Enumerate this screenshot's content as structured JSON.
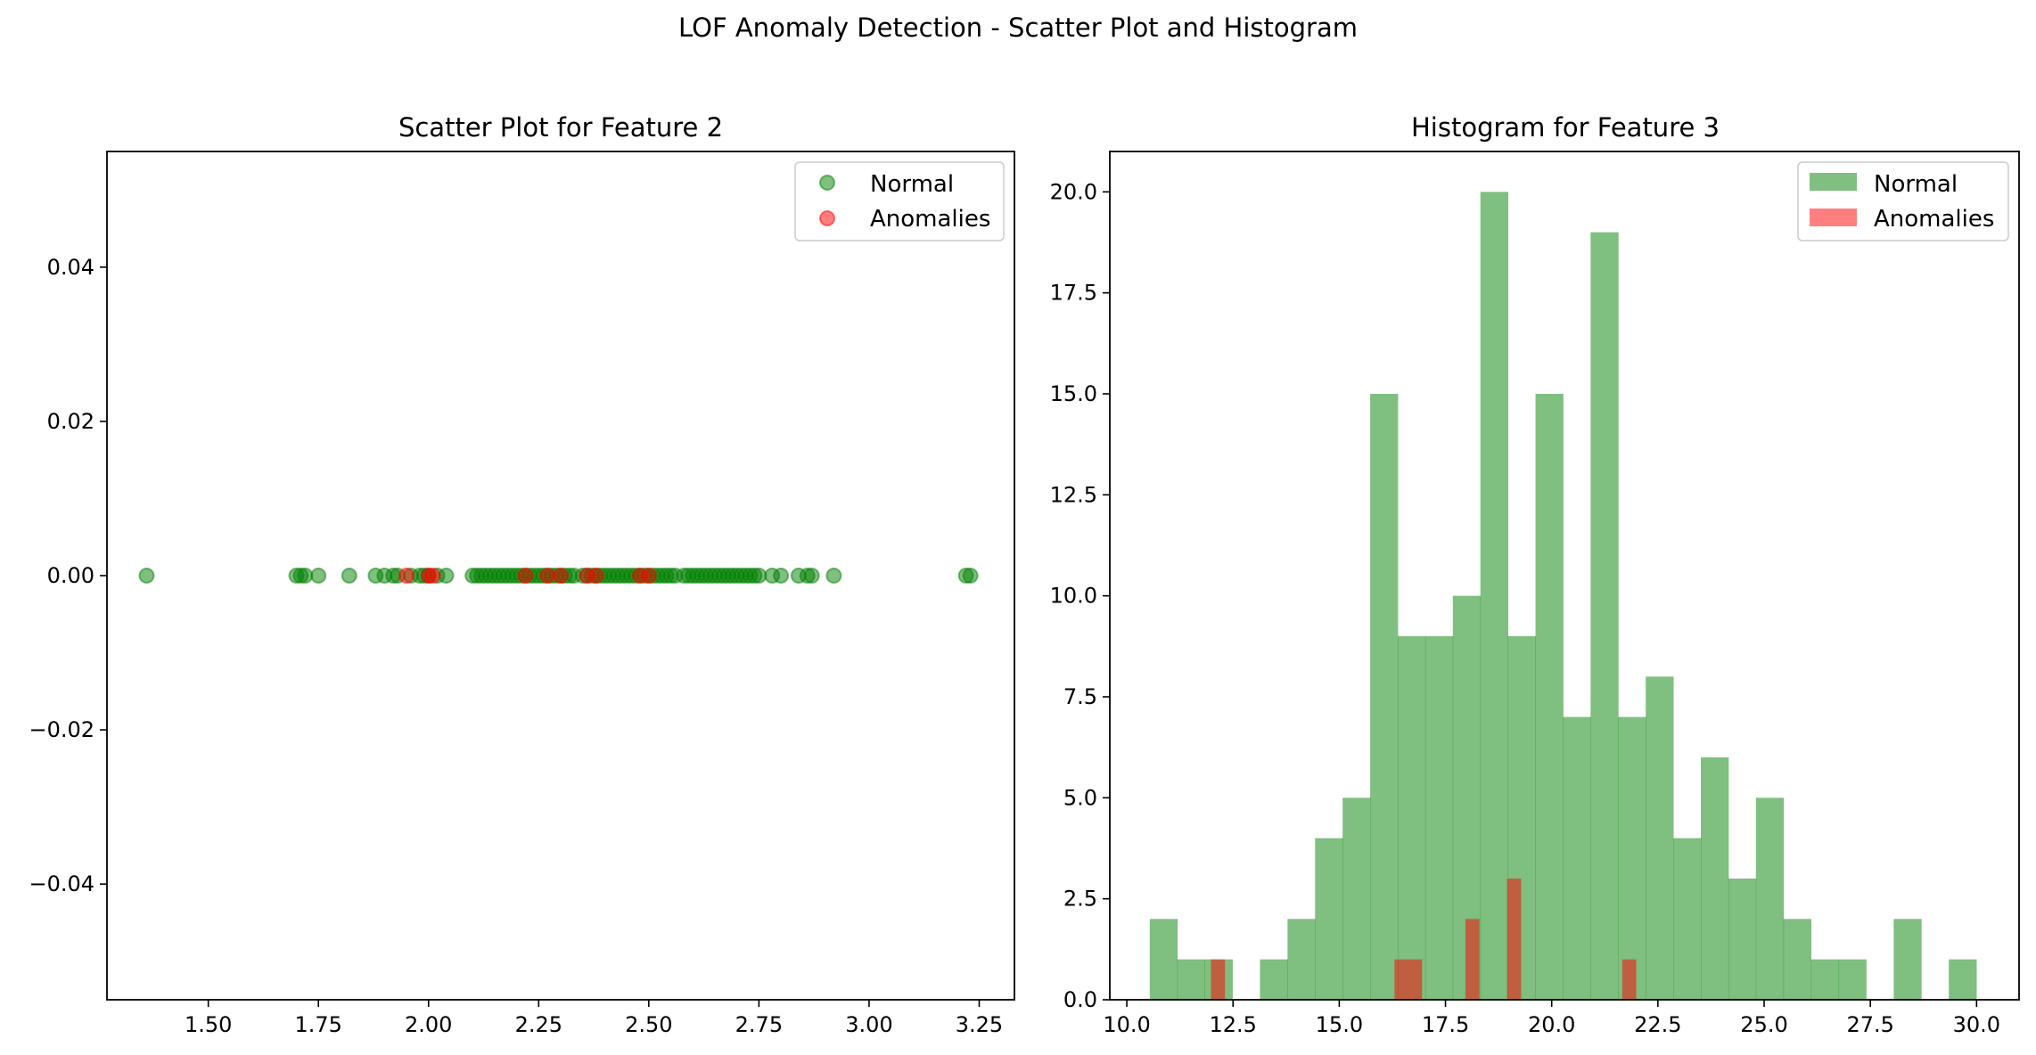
{
  "figure": {
    "suptitle": "LOF Anomaly Detection - Scatter Plot and Histogram"
  },
  "colors": {
    "normal": "#008000",
    "anomaly": "#ff0000",
    "overlap": "#c0603d"
  },
  "chart_data": [
    {
      "type": "scatter",
      "title": "Scatter Plot for Feature 2",
      "xlabel": "",
      "ylabel": "",
      "xlim": [
        1.27,
        3.33
      ],
      "ylim": [
        -0.055,
        0.055
      ],
      "xticks": [
        1.5,
        1.75,
        2.0,
        2.25,
        2.5,
        2.75,
        3.0,
        3.25
      ],
      "xtick_labels": [
        "1.50",
        "1.75",
        "2.00",
        "2.25",
        "2.50",
        "2.75",
        "3.00",
        "3.25"
      ],
      "yticks": [
        0.04,
        0.02,
        0.0,
        -0.02,
        -0.04
      ],
      "ytick_labels": [
        "0.04",
        "0.02",
        "0.00",
        "−0.02",
        "−0.04"
      ],
      "grid": false,
      "legend_position": "top-right",
      "series": [
        {
          "name": "Normal",
          "color": "green",
          "x": [
            1.36,
            1.7,
            1.71,
            1.72,
            1.75,
            1.82,
            1.88,
            1.9,
            1.92,
            1.93,
            1.96,
            1.98,
            1.99,
            2.0,
            2.02,
            2.04,
            2.1,
            2.11,
            2.12,
            2.13,
            2.14,
            2.15,
            2.16,
            2.17,
            2.18,
            2.19,
            2.2,
            2.21,
            2.22,
            2.23,
            2.24,
            2.25,
            2.26,
            2.27,
            2.28,
            2.29,
            2.3,
            2.31,
            2.32,
            2.33,
            2.35,
            2.36,
            2.37,
            2.38,
            2.39,
            2.4,
            2.41,
            2.42,
            2.43,
            2.44,
            2.45,
            2.46,
            2.47,
            2.48,
            2.49,
            2.5,
            2.51,
            2.52,
            2.53,
            2.54,
            2.55,
            2.56,
            2.58,
            2.59,
            2.6,
            2.61,
            2.62,
            2.63,
            2.64,
            2.65,
            2.66,
            2.67,
            2.68,
            2.69,
            2.7,
            2.71,
            2.72,
            2.73,
            2.74,
            2.75,
            2.78,
            2.8,
            2.84,
            2.86,
            2.87,
            2.92,
            3.22,
            3.23
          ],
          "y": [
            0,
            0,
            0,
            0,
            0,
            0,
            0,
            0,
            0,
            0,
            0,
            0,
            0,
            0,
            0,
            0,
            0,
            0,
            0,
            0,
            0,
            0,
            0,
            0,
            0,
            0,
            0,
            0,
            0,
            0,
            0,
            0,
            0,
            0,
            0,
            0,
            0,
            0,
            0,
            0,
            0,
            0,
            0,
            0,
            0,
            0,
            0,
            0,
            0,
            0,
            0,
            0,
            0,
            0,
            0,
            0,
            0,
            0,
            0,
            0,
            0,
            0,
            0,
            0,
            0,
            0,
            0,
            0,
            0,
            0,
            0,
            0,
            0,
            0,
            0,
            0,
            0,
            0,
            0,
            0,
            0,
            0,
            0,
            0,
            0,
            0,
            0,
            0
          ]
        },
        {
          "name": "Anomalies",
          "color": "red",
          "x": [
            1.95,
            2.0,
            2.01,
            2.22,
            2.27,
            2.3,
            2.36,
            2.38,
            2.48,
            2.5
          ],
          "y": [
            0,
            0,
            0,
            0,
            0,
            0,
            0,
            0,
            0,
            0
          ]
        }
      ]
    },
    {
      "type": "bar",
      "subtype": "histogram",
      "title": "Histogram for Feature 3",
      "xlabel": "",
      "ylabel": "",
      "xlim": [
        9.6,
        31.0
      ],
      "ylim": [
        0,
        21
      ],
      "xticks": [
        10.0,
        12.5,
        15.0,
        17.5,
        20.0,
        22.5,
        25.0,
        27.5,
        30.0
      ],
      "xtick_labels": [
        "10.0",
        "12.5",
        "15.0",
        "17.5",
        "20.0",
        "22.5",
        "25.0",
        "27.5",
        "30.0"
      ],
      "yticks": [
        0.0,
        2.5,
        5.0,
        7.5,
        10.0,
        12.5,
        15.0,
        17.5,
        20.0
      ],
      "ytick_labels": [
        "0.0",
        "2.5",
        "5.0",
        "7.5",
        "10.0",
        "12.5",
        "15.0",
        "17.5",
        "20.0"
      ],
      "grid": false,
      "legend_position": "top-right",
      "series": [
        {
          "name": "Normal",
          "color": "green",
          "bin_start": 10.54,
          "bin_width": 0.6485,
          "counts": [
            2,
            1,
            1,
            0,
            1,
            2,
            4,
            5,
            15,
            9,
            9,
            10,
            20,
            9,
            15,
            7,
            19,
            7,
            8,
            4,
            6,
            3,
            5,
            2,
            1,
            1,
            0,
            2,
            0,
            1
          ]
        },
        {
          "name": "Anomalies",
          "color": "red",
          "bins": [
            {
              "start": 11.98,
              "end": 12.31,
              "count": 1
            },
            {
              "start": 16.3,
              "end": 16.95,
              "count": 1
            },
            {
              "start": 17.97,
              "end": 18.3,
              "count": 2
            },
            {
              "start": 18.95,
              "end": 19.28,
              "count": 3
            },
            {
              "start": 21.66,
              "end": 21.99,
              "count": 1
            }
          ]
        }
      ]
    }
  ]
}
